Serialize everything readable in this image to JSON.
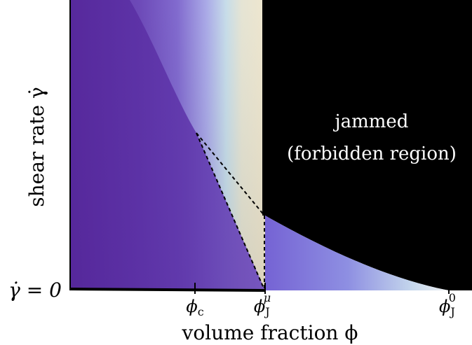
{
  "diagram": {
    "y_axis_label": "shear rate γ̇",
    "x_axis_label": "volume fraction ϕ",
    "zero_shear_label": "γ̇ = 0",
    "region_label_line1": "jammed",
    "region_label_line2": "(forbidden region)",
    "ticks": [
      {
        "base": "ϕ",
        "sub": "c",
        "sup": ""
      },
      {
        "base": "ϕ",
        "sub": "J",
        "sup": "μ"
      },
      {
        "base": "ϕ",
        "sub": "J",
        "sup": "0"
      }
    ],
    "colors": {
      "jammed": "#000000",
      "deep_purple": "#5a2e9e",
      "mid_purple": "#8470d8",
      "light_blue": "#bfdde8",
      "cream": "#eee5cc",
      "dashed_line": "#000000"
    }
  }
}
